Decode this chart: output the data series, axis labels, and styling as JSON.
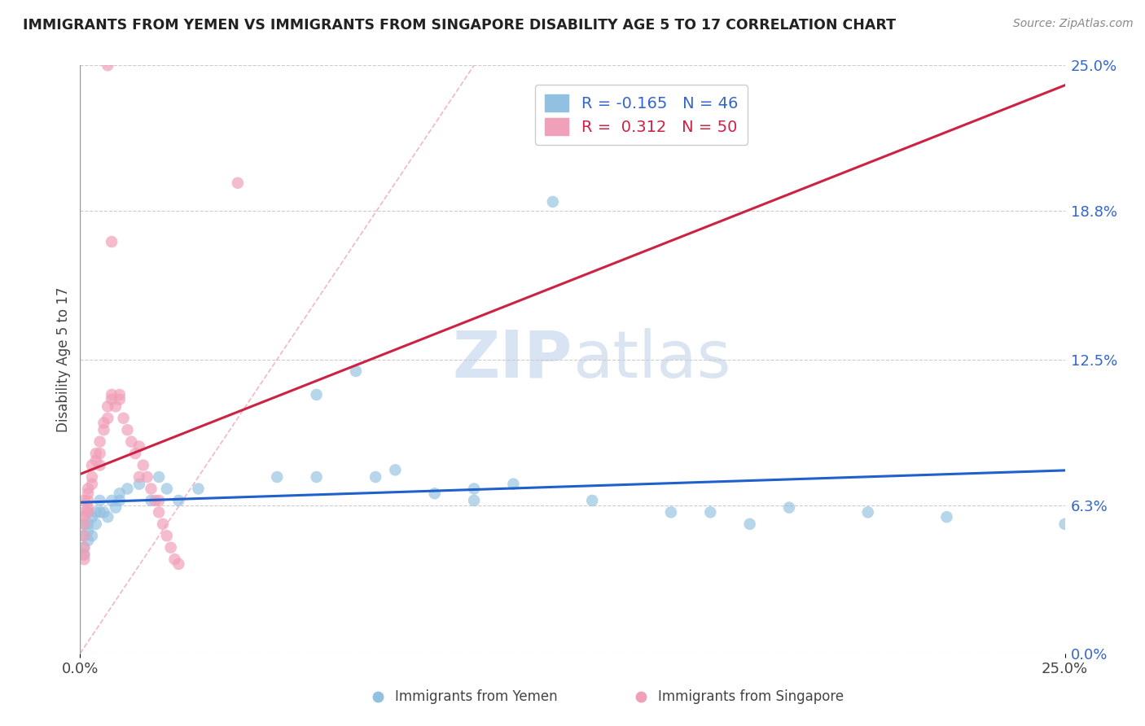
{
  "title": "IMMIGRANTS FROM YEMEN VS IMMIGRANTS FROM SINGAPORE DISABILITY AGE 5 TO 17 CORRELATION CHART",
  "source": "Source: ZipAtlas.com",
  "ylabel": "Disability Age 5 to 17",
  "xlim": [
    0,
    0.25
  ],
  "ylim": [
    0,
    0.25
  ],
  "xtick_vals": [
    0.0,
    0.25
  ],
  "xtick_labels": [
    "0.0%",
    "25.0%"
  ],
  "ytick_vals": [
    0.0,
    0.063,
    0.125,
    0.188,
    0.25
  ],
  "ytick_labels": [
    "0.0%",
    "6.3%",
    "12.5%",
    "18.8%",
    "25.0%"
  ],
  "blue_color": "#92c0e0",
  "pink_color": "#f0a0b8",
  "trend_blue_color": "#2060cc",
  "trend_pink_color": "#cc2244",
  "diag_color": "#f0b0c0",
  "watermark_color": "#dde8f5",
  "R_blue": -0.165,
  "N_blue": 46,
  "R_pink": 0.312,
  "N_pink": 50,
  "yemen_x": [
    0.001,
    0.001,
    0.001,
    0.001,
    0.002,
    0.002,
    0.002,
    0.002,
    0.003,
    0.003,
    0.004,
    0.004,
    0.005,
    0.005,
    0.006,
    0.007,
    0.008,
    0.009,
    0.01,
    0.01,
    0.012,
    0.015,
    0.018,
    0.02,
    0.022,
    0.025,
    0.03,
    0.05,
    0.06,
    0.06,
    0.07,
    0.075,
    0.08,
    0.09,
    0.1,
    0.1,
    0.11,
    0.12,
    0.13,
    0.15,
    0.16,
    0.17,
    0.18,
    0.2,
    0.22,
    0.25
  ],
  "yemen_y": [
    0.055,
    0.05,
    0.045,
    0.042,
    0.06,
    0.055,
    0.052,
    0.048,
    0.058,
    0.05,
    0.06,
    0.055,
    0.065,
    0.06,
    0.06,
    0.058,
    0.065,
    0.062,
    0.068,
    0.065,
    0.07,
    0.072,
    0.065,
    0.075,
    0.07,
    0.065,
    0.07,
    0.075,
    0.11,
    0.075,
    0.12,
    0.075,
    0.078,
    0.068,
    0.07,
    0.065,
    0.072,
    0.192,
    0.065,
    0.06,
    0.06,
    0.055,
    0.062,
    0.06,
    0.058,
    0.055
  ],
  "singapore_x": [
    0.001,
    0.001,
    0.001,
    0.001,
    0.001,
    0.001,
    0.001,
    0.001,
    0.002,
    0.002,
    0.002,
    0.002,
    0.002,
    0.003,
    0.003,
    0.003,
    0.004,
    0.004,
    0.005,
    0.005,
    0.005,
    0.006,
    0.006,
    0.007,
    0.007,
    0.008,
    0.008,
    0.009,
    0.01,
    0.01,
    0.011,
    0.012,
    0.013,
    0.014,
    0.015,
    0.016,
    0.017,
    0.018,
    0.019,
    0.02,
    0.02,
    0.021,
    0.022,
    0.023,
    0.024,
    0.025,
    0.015,
    0.04,
    0.007,
    0.008
  ],
  "singapore_y": [
    0.04,
    0.042,
    0.045,
    0.05,
    0.055,
    0.058,
    0.06,
    0.065,
    0.062,
    0.06,
    0.065,
    0.068,
    0.07,
    0.072,
    0.075,
    0.08,
    0.082,
    0.085,
    0.08,
    0.085,
    0.09,
    0.095,
    0.098,
    0.1,
    0.105,
    0.108,
    0.11,
    0.105,
    0.108,
    0.11,
    0.1,
    0.095,
    0.09,
    0.085,
    0.088,
    0.08,
    0.075,
    0.07,
    0.065,
    0.06,
    0.065,
    0.055,
    0.05,
    0.045,
    0.04,
    0.038,
    0.075,
    0.2,
    0.25,
    0.175
  ]
}
